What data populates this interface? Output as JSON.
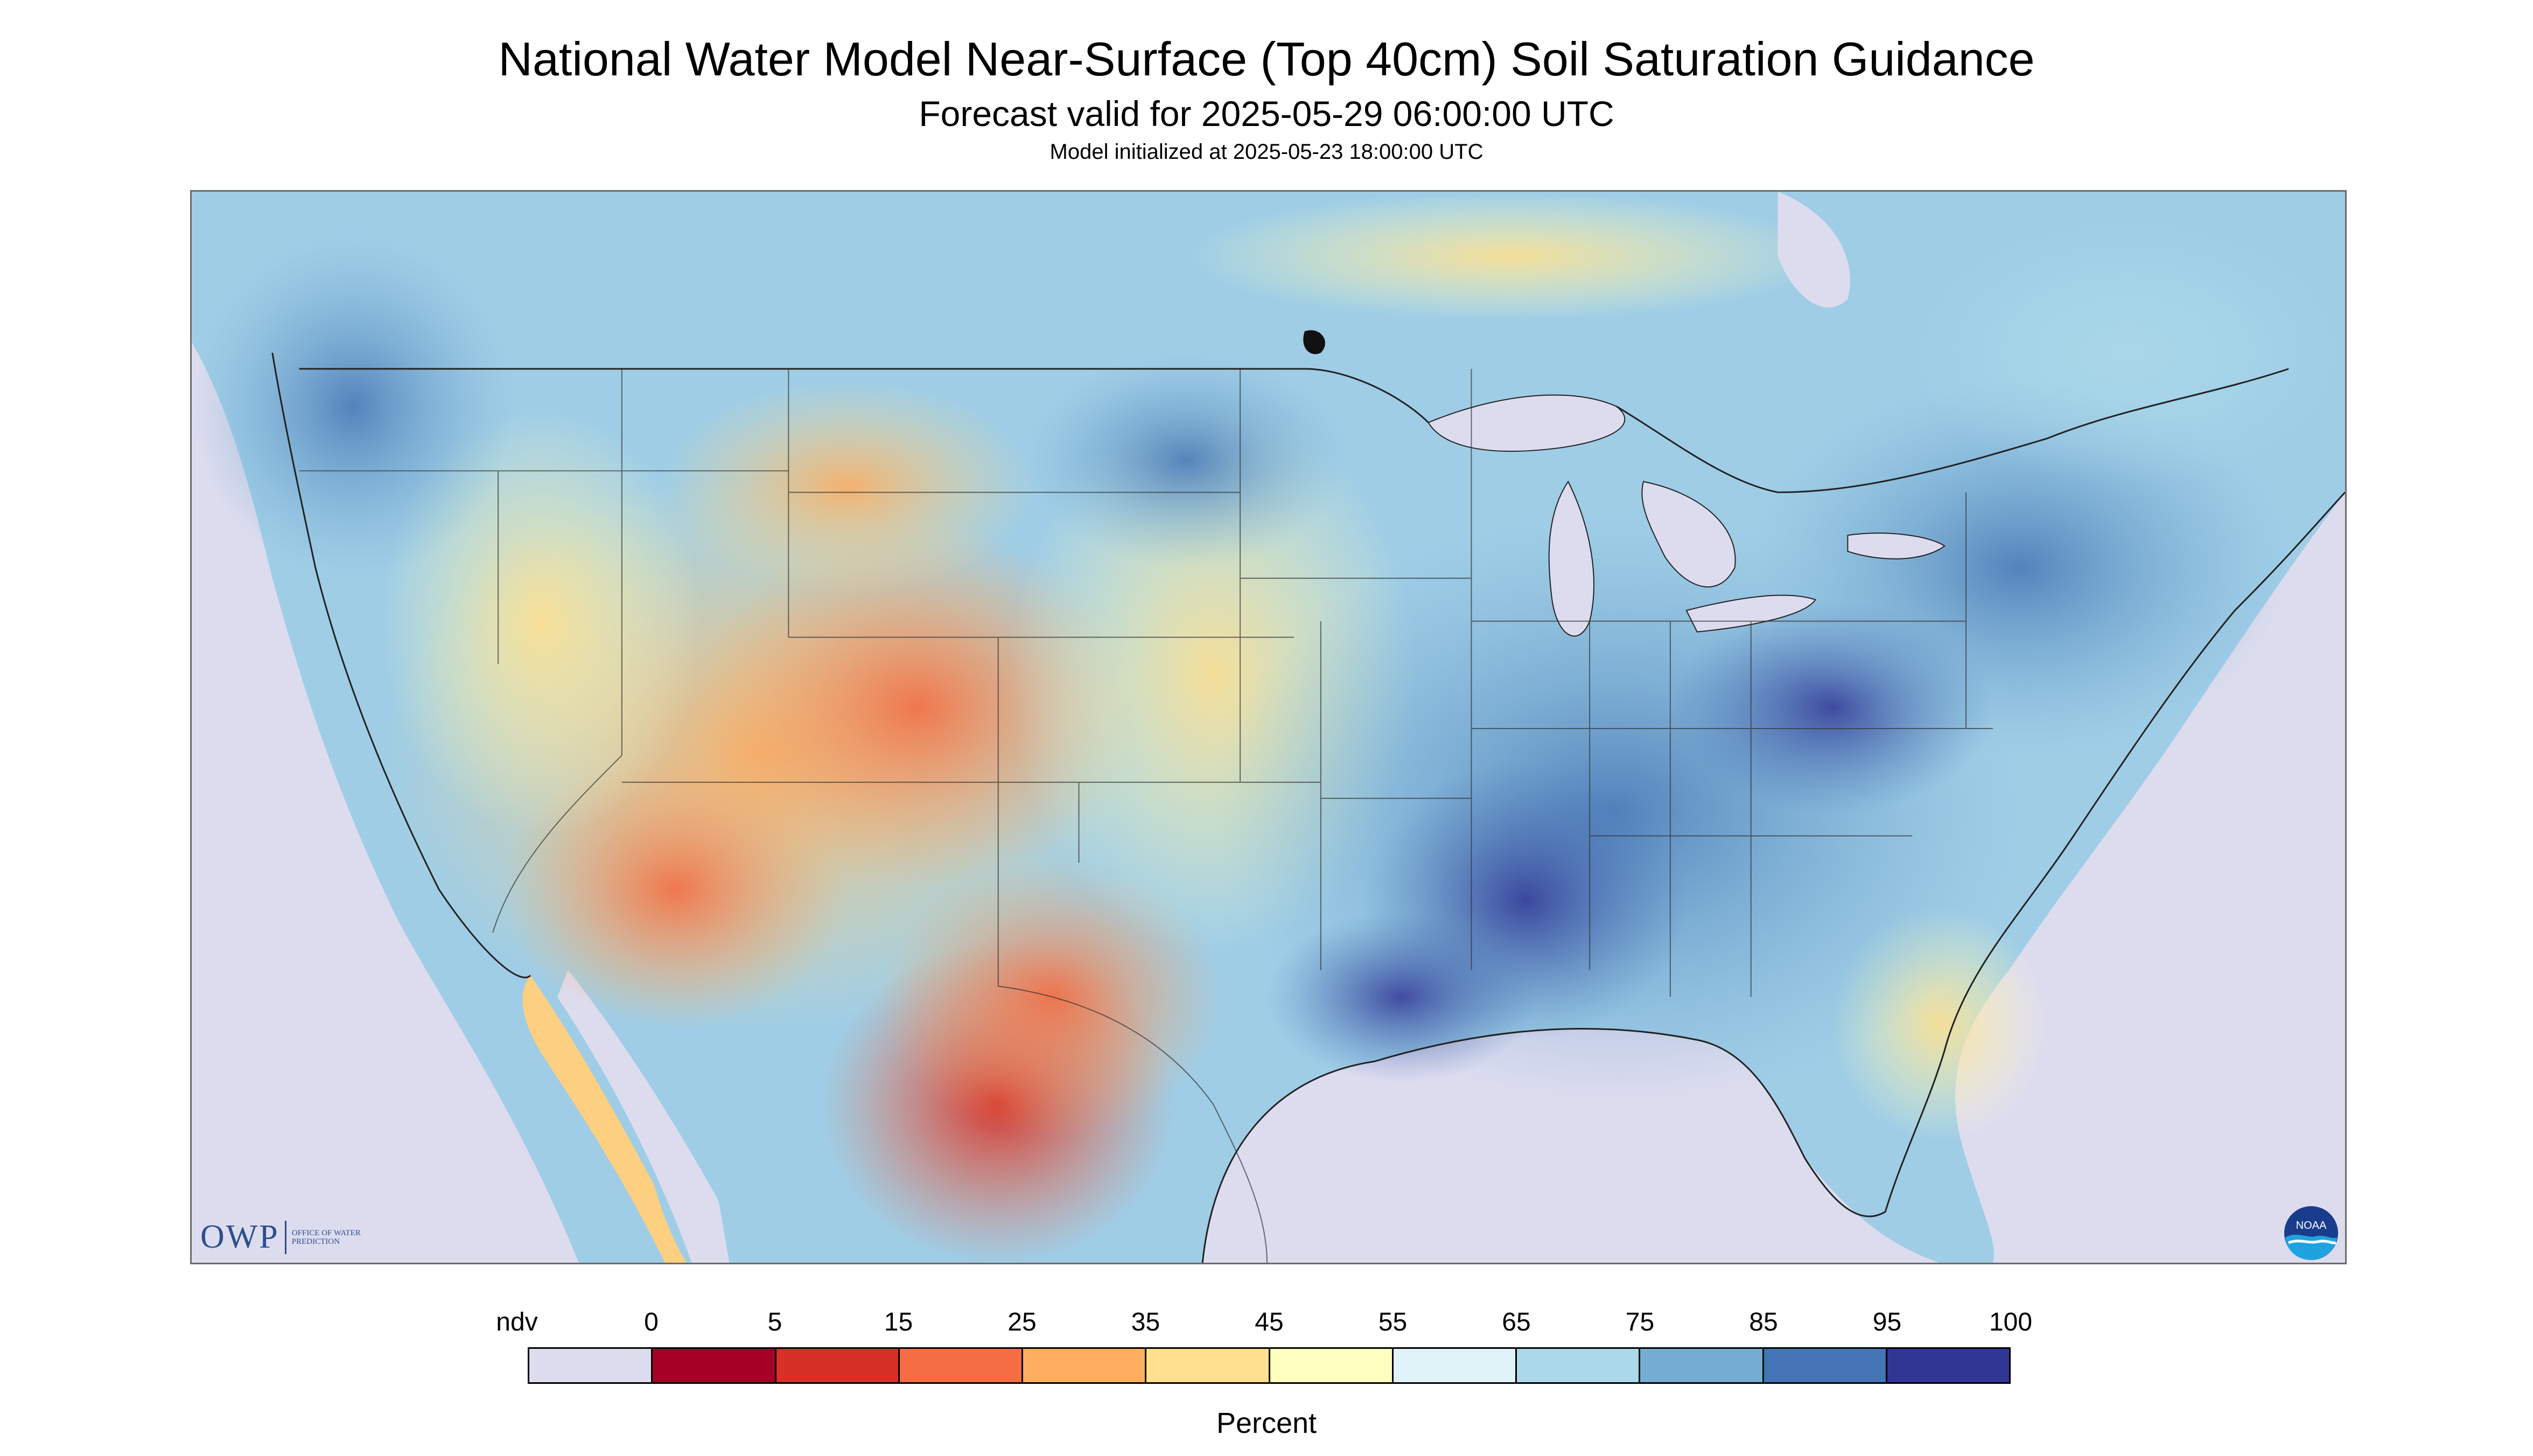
{
  "header": {
    "title": "National Water Model Near-Surface (Top 40cm) Soil Saturation Guidance",
    "subtitle": "Forecast valid for 2025-05-29 06:00:00 UTC",
    "init": "Model initialized at 2025-05-23 18:00:00 UTC"
  },
  "map": {
    "region": "Continental United States",
    "nodata_color": "#dddcef",
    "water_color": "#dddcef"
  },
  "logos": {
    "owp_letters": "OWP",
    "owp_text": "OFFICE OF WATER PREDICTION",
    "noaa_text": "NOAA"
  },
  "legend": {
    "title": "Percent",
    "labels": [
      "ndv",
      "0",
      "5",
      "15",
      "25",
      "35",
      "45",
      "55",
      "65",
      "75",
      "85",
      "95",
      "100"
    ],
    "colors": [
      "#dddcef",
      "#a50026",
      "#d73027",
      "#f46d43",
      "#fdae61",
      "#fee090",
      "#ffffbf",
      "#e0f3f8",
      "#abd9e9",
      "#74add1",
      "#4575b4",
      "#313695"
    ]
  }
}
